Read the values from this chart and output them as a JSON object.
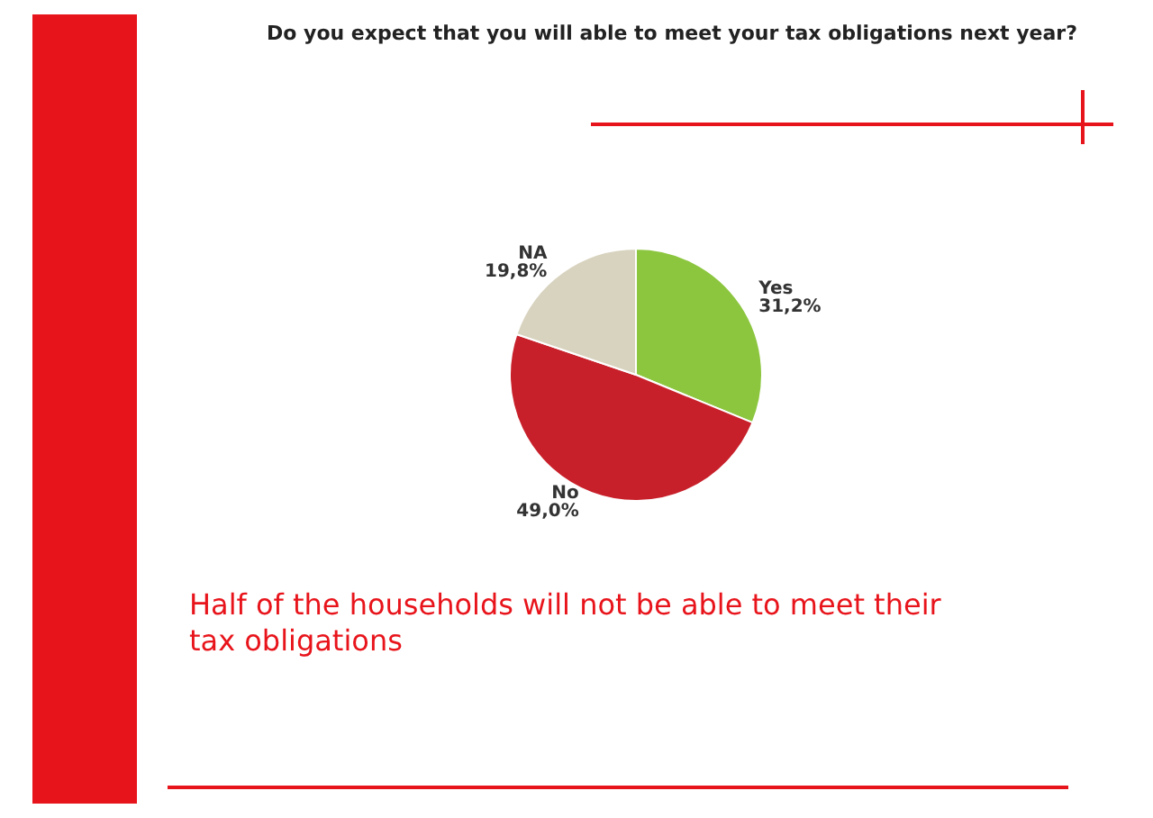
{
  "chart_data": {
    "type": "pie",
    "title": "Do you expect that you will able to meet your tax obligations next year?",
    "categories": [
      "Yes",
      "No",
      "NA"
    ],
    "values": [
      31.2,
      49.0,
      19.8
    ],
    "colors": [
      "#8cc63f",
      "#c8202a",
      "#d8d3bf"
    ],
    "value_labels": [
      "31,2%",
      "49,0%",
      "19,8%"
    ],
    "annotations": [
      "Half of the households will not be able to meet their tax obligations"
    ]
  }
}
